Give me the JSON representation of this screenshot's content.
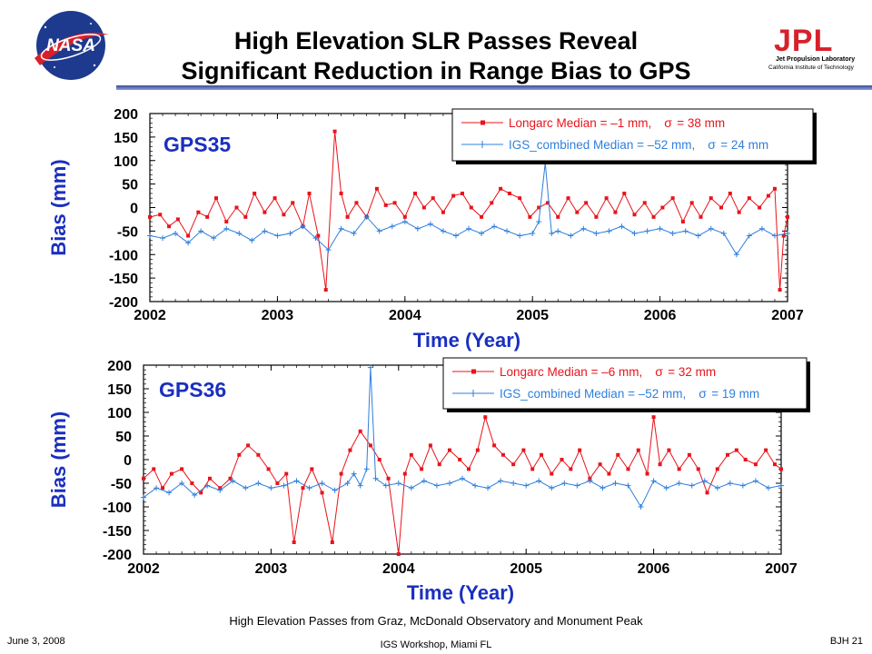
{
  "title": {
    "line1": "High Elevation SLR Passes Reveal",
    "line2": "Significant Reduction in Range Bias to GPS"
  },
  "logos": {
    "nasa": "NASA",
    "jpl": "JPL",
    "jpl_sub1": "Jet Propulsion Laboratory",
    "jpl_sub2": "California Institute of Technology"
  },
  "caption": "High Elevation Passes from Graz, McDonald Observatory and Monument Peak",
  "footer": {
    "date": "June 3, 2008",
    "event": "IGS Workshop, Miami FL",
    "page": "BJH 21"
  },
  "colors": {
    "longarc": "#e8141b",
    "igs": "#2f7fdc",
    "axis_label": "#1a2fbf",
    "title_bar": "#4a5bb0"
  },
  "chart_data": [
    {
      "type": "line",
      "label": "GPS35",
      "xlabel": "Time (Year)",
      "ylabel": "Bias (mm)",
      "xlim": [
        2002,
        2007
      ],
      "ylim": [
        -200,
        200
      ],
      "xticks": [
        "2002",
        "2003",
        "2004",
        "2005",
        "2006",
        "2007"
      ],
      "yticks": [
        "200",
        "150",
        "100",
        "50",
        "0",
        "-50",
        "-100",
        "-150",
        "-200"
      ],
      "legend_position": "top-right",
      "series": [
        {
          "name": "Longarc",
          "legend": "Longarc Median = –1 mm,",
          "sigma": "= 38 mm",
          "median_mm": -1,
          "sigma_mm": 38,
          "marker": "square",
          "points": [
            [
              2002.0,
              -20
            ],
            [
              2002.08,
              -15
            ],
            [
              2002.15,
              -40
            ],
            [
              2002.22,
              -25
            ],
            [
              2002.3,
              -60
            ],
            [
              2002.38,
              -10
            ],
            [
              2002.45,
              -20
            ],
            [
              2002.52,
              20
            ],
            [
              2002.6,
              -30
            ],
            [
              2002.68,
              0
            ],
            [
              2002.75,
              -20
            ],
            [
              2002.82,
              30
            ],
            [
              2002.9,
              -10
            ],
            [
              2002.98,
              20
            ],
            [
              2003.05,
              -15
            ],
            [
              2003.12,
              10
            ],
            [
              2003.2,
              -40
            ],
            [
              2003.25,
              30
            ],
            [
              2003.32,
              -60
            ],
            [
              2003.38,
              -175
            ],
            [
              2003.45,
              162
            ],
            [
              2003.5,
              30
            ],
            [
              2003.55,
              -20
            ],
            [
              2003.62,
              10
            ],
            [
              2003.7,
              -20
            ],
            [
              2003.78,
              40
            ],
            [
              2003.85,
              5
            ],
            [
              2003.92,
              10
            ],
            [
              2004.0,
              -20
            ],
            [
              2004.08,
              30
            ],
            [
              2004.15,
              0
            ],
            [
              2004.22,
              20
            ],
            [
              2004.3,
              -10
            ],
            [
              2004.38,
              25
            ],
            [
              2004.45,
              30
            ],
            [
              2004.52,
              0
            ],
            [
              2004.6,
              -20
            ],
            [
              2004.68,
              10
            ],
            [
              2004.75,
              40
            ],
            [
              2004.82,
              30
            ],
            [
              2004.9,
              20
            ],
            [
              2004.98,
              -20
            ],
            [
              2005.05,
              0
            ],
            [
              2005.12,
              10
            ],
            [
              2005.2,
              -20
            ],
            [
              2005.28,
              20
            ],
            [
              2005.35,
              -10
            ],
            [
              2005.42,
              10
            ],
            [
              2005.5,
              -20
            ],
            [
              2005.58,
              20
            ],
            [
              2005.65,
              -10
            ],
            [
              2005.72,
              30
            ],
            [
              2005.8,
              -15
            ],
            [
              2005.88,
              10
            ],
            [
              2005.95,
              -20
            ],
            [
              2006.02,
              0
            ],
            [
              2006.1,
              20
            ],
            [
              2006.18,
              -30
            ],
            [
              2006.25,
              10
            ],
            [
              2006.32,
              -20
            ],
            [
              2006.4,
              20
            ],
            [
              2006.48,
              0
            ],
            [
              2006.55,
              30
            ],
            [
              2006.62,
              -10
            ],
            [
              2006.7,
              20
            ],
            [
              2006.78,
              0
            ],
            [
              2006.85,
              25
            ],
            [
              2006.9,
              40
            ],
            [
              2006.94,
              -175
            ],
            [
              2006.97,
              -60
            ],
            [
              2007.0,
              -20
            ]
          ]
        },
        {
          "name": "IGS_combined",
          "legend": "IGS_combined Median = –52 mm,",
          "sigma": "= 24 mm",
          "median_mm": -52,
          "sigma_mm": 24,
          "marker": "plus",
          "points": [
            [
              2002.0,
              -60
            ],
            [
              2002.1,
              -65
            ],
            [
              2002.2,
              -55
            ],
            [
              2002.3,
              -75
            ],
            [
              2002.4,
              -50
            ],
            [
              2002.5,
              -65
            ],
            [
              2002.6,
              -45
            ],
            [
              2002.7,
              -55
            ],
            [
              2002.8,
              -70
            ],
            [
              2002.9,
              -50
            ],
            [
              2003.0,
              -60
            ],
            [
              2003.1,
              -55
            ],
            [
              2003.2,
              -40
            ],
            [
              2003.3,
              -65
            ],
            [
              2003.4,
              -90
            ],
            [
              2003.5,
              -45
            ],
            [
              2003.6,
              -55
            ],
            [
              2003.7,
              -20
            ],
            [
              2003.8,
              -50
            ],
            [
              2003.9,
              -40
            ],
            [
              2004.0,
              -30
            ],
            [
              2004.1,
              -45
            ],
            [
              2004.2,
              -35
            ],
            [
              2004.3,
              -50
            ],
            [
              2004.4,
              -60
            ],
            [
              2004.5,
              -45
            ],
            [
              2004.6,
              -55
            ],
            [
              2004.7,
              -40
            ],
            [
              2004.8,
              -50
            ],
            [
              2004.9,
              -60
            ],
            [
              2005.0,
              -55
            ],
            [
              2005.05,
              -30
            ],
            [
              2005.1,
              95
            ],
            [
              2005.15,
              -55
            ],
            [
              2005.2,
              -50
            ],
            [
              2005.3,
              -60
            ],
            [
              2005.4,
              -45
            ],
            [
              2005.5,
              -55
            ],
            [
              2005.6,
              -50
            ],
            [
              2005.7,
              -40
            ],
            [
              2005.8,
              -55
            ],
            [
              2005.9,
              -50
            ],
            [
              2006.0,
              -45
            ],
            [
              2006.1,
              -55
            ],
            [
              2006.2,
              -50
            ],
            [
              2006.3,
              -60
            ],
            [
              2006.4,
              -45
            ],
            [
              2006.5,
              -55
            ],
            [
              2006.6,
              -100
            ],
            [
              2006.7,
              -60
            ],
            [
              2006.8,
              -45
            ],
            [
              2006.9,
              -60
            ],
            [
              2007.0,
              -55
            ]
          ]
        }
      ]
    },
    {
      "type": "line",
      "label": "GPS36",
      "xlabel": "Time (Year)",
      "ylabel": "Bias (mm)",
      "xlim": [
        2002,
        2007
      ],
      "ylim": [
        -200,
        200
      ],
      "xticks": [
        "2002",
        "2003",
        "2004",
        "2005",
        "2006",
        "2007"
      ],
      "yticks": [
        "200",
        "150",
        "100",
        "50",
        "0",
        "-50",
        "-100",
        "-150",
        "-200"
      ],
      "legend_position": "top-right",
      "series": [
        {
          "name": "Longarc",
          "legend": "Longarc Median = –6 mm,",
          "sigma": "= 32 mm",
          "median_mm": -6,
          "sigma_mm": 32,
          "marker": "square",
          "points": [
            [
              2002.0,
              -40
            ],
            [
              2002.08,
              -20
            ],
            [
              2002.15,
              -60
            ],
            [
              2002.22,
              -30
            ],
            [
              2002.3,
              -20
            ],
            [
              2002.38,
              -50
            ],
            [
              2002.45,
              -70
            ],
            [
              2002.52,
              -40
            ],
            [
              2002.6,
              -60
            ],
            [
              2002.68,
              -40
            ],
            [
              2002.75,
              10
            ],
            [
              2002.82,
              30
            ],
            [
              2002.9,
              10
            ],
            [
              2002.98,
              -20
            ],
            [
              2003.05,
              -50
            ],
            [
              2003.12,
              -30
            ],
            [
              2003.18,
              -175
            ],
            [
              2003.25,
              -60
            ],
            [
              2003.32,
              -20
            ],
            [
              2003.4,
              -70
            ],
            [
              2003.48,
              -175
            ],
            [
              2003.55,
              -30
            ],
            [
              2003.62,
              20
            ],
            [
              2003.7,
              60
            ],
            [
              2003.78,
              30
            ],
            [
              2003.85,
              0
            ],
            [
              2003.92,
              -40
            ],
            [
              2004.0,
              -200
            ],
            [
              2004.05,
              -30
            ],
            [
              2004.1,
              10
            ],
            [
              2004.18,
              -20
            ],
            [
              2004.25,
              30
            ],
            [
              2004.32,
              -10
            ],
            [
              2004.4,
              20
            ],
            [
              2004.48,
              0
            ],
            [
              2004.55,
              -20
            ],
            [
              2004.62,
              20
            ],
            [
              2004.68,
              90
            ],
            [
              2004.75,
              30
            ],
            [
              2004.82,
              10
            ],
            [
              2004.9,
              -10
            ],
            [
              2004.98,
              20
            ],
            [
              2005.05,
              -20
            ],
            [
              2005.12,
              10
            ],
            [
              2005.2,
              -30
            ],
            [
              2005.28,
              0
            ],
            [
              2005.35,
              -20
            ],
            [
              2005.42,
              20
            ],
            [
              2005.5,
              -40
            ],
            [
              2005.58,
              -10
            ],
            [
              2005.65,
              -30
            ],
            [
              2005.72,
              10
            ],
            [
              2005.8,
              -20
            ],
            [
              2005.88,
              20
            ],
            [
              2005.95,
              -30
            ],
            [
              2006.0,
              90
            ],
            [
              2006.05,
              -10
            ],
            [
              2006.12,
              20
            ],
            [
              2006.2,
              -20
            ],
            [
              2006.28,
              10
            ],
            [
              2006.35,
              -20
            ],
            [
              2006.42,
              -70
            ],
            [
              2006.5,
              -20
            ],
            [
              2006.58,
              10
            ],
            [
              2006.65,
              20
            ],
            [
              2006.72,
              0
            ],
            [
              2006.8,
              -10
            ],
            [
              2006.88,
              20
            ],
            [
              2006.95,
              -10
            ],
            [
              2007.0,
              -20
            ]
          ]
        },
        {
          "name": "IGS_combined",
          "legend": "IGS_combined Median = –52 mm,",
          "sigma": "= 19 mm",
          "median_mm": -52,
          "sigma_mm": 19,
          "marker": "plus",
          "points": [
            [
              2002.0,
              -80
            ],
            [
              2002.1,
              -60
            ],
            [
              2002.2,
              -70
            ],
            [
              2002.3,
              -50
            ],
            [
              2002.4,
              -75
            ],
            [
              2002.5,
              -55
            ],
            [
              2002.6,
              -65
            ],
            [
              2002.7,
              -45
            ],
            [
              2002.8,
              -60
            ],
            [
              2002.9,
              -50
            ],
            [
              2003.0,
              -60
            ],
            [
              2003.1,
              -55
            ],
            [
              2003.2,
              -45
            ],
            [
              2003.3,
              -60
            ],
            [
              2003.4,
              -50
            ],
            [
              2003.5,
              -65
            ],
            [
              2003.6,
              -50
            ],
            [
              2003.65,
              -30
            ],
            [
              2003.7,
              -55
            ],
            [
              2003.75,
              -20
            ],
            [
              2003.78,
              195
            ],
            [
              2003.82,
              -40
            ],
            [
              2003.9,
              -55
            ],
            [
              2004.0,
              -50
            ],
            [
              2004.1,
              -60
            ],
            [
              2004.2,
              -45
            ],
            [
              2004.3,
              -55
            ],
            [
              2004.4,
              -50
            ],
            [
              2004.5,
              -40
            ],
            [
              2004.6,
              -55
            ],
            [
              2004.7,
              -60
            ],
            [
              2004.8,
              -45
            ],
            [
              2004.9,
              -50
            ],
            [
              2005.0,
              -55
            ],
            [
              2005.1,
              -45
            ],
            [
              2005.2,
              -60
            ],
            [
              2005.3,
              -50
            ],
            [
              2005.4,
              -55
            ],
            [
              2005.5,
              -45
            ],
            [
              2005.6,
              -60
            ],
            [
              2005.7,
              -50
            ],
            [
              2005.8,
              -55
            ],
            [
              2005.9,
              -100
            ],
            [
              2006.0,
              -45
            ],
            [
              2006.1,
              -60
            ],
            [
              2006.2,
              -50
            ],
            [
              2006.3,
              -55
            ],
            [
              2006.4,
              -45
            ],
            [
              2006.5,
              -60
            ],
            [
              2006.6,
              -50
            ],
            [
              2006.7,
              -55
            ],
            [
              2006.8,
              -45
            ],
            [
              2006.9,
              -60
            ],
            [
              2007.0,
              -55
            ]
          ]
        }
      ]
    }
  ]
}
